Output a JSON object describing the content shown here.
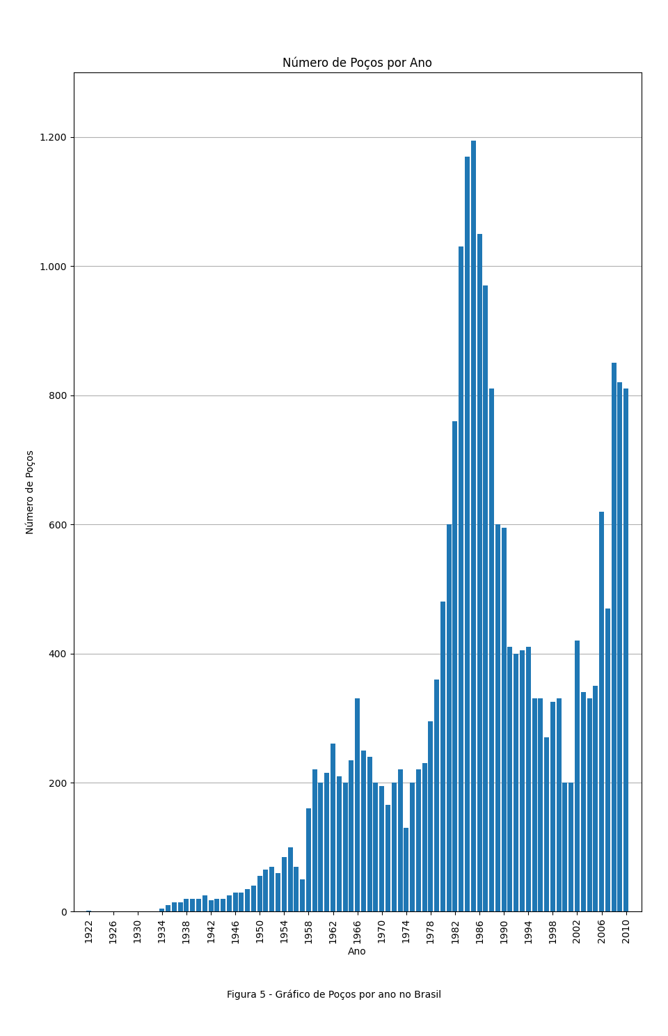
{
  "chart_data": {
    "type": "bar",
    "title": "Número de Poços por Ano",
    "x_label": "Ano",
    "y_label": "Número de Poços",
    "x": [
      1922,
      1923,
      1924,
      1925,
      1926,
      1927,
      1928,
      1929,
      1930,
      1931,
      1932,
      1933,
      1934,
      1935,
      1936,
      1937,
      1938,
      1939,
      1940,
      1941,
      1942,
      1943,
      1944,
      1945,
      1946,
      1947,
      1948,
      1949,
      1950,
      1951,
      1952,
      1953,
      1954,
      1955,
      1956,
      1957,
      1958,
      1959,
      1960,
      1961,
      1962,
      1963,
      1964,
      1965,
      1966,
      1967,
      1968,
      1969,
      1970,
      1971,
      1972,
      1973,
      1974,
      1975,
      1976,
      1977,
      1978,
      1979,
      1980,
      1981,
      1982,
      1983,
      1984,
      1985,
      1986,
      1987,
      1988,
      1989,
      1990,
      1991,
      1992,
      1993,
      1994,
      1995,
      1996,
      1997,
      1998,
      1999,
      2000,
      2001,
      2002,
      2003,
      2004,
      2005,
      2006,
      2007,
      2008,
      2009,
      2010
    ],
    "values": [
      2,
      0,
      0,
      0,
      0,
      0,
      0,
      0,
      0,
      0,
      0,
      0,
      5,
      10,
      15,
      15,
      20,
      20,
      20,
      25,
      18,
      20,
      20,
      25,
      30,
      30,
      35,
      40,
      55,
      65,
      70,
      60,
      85,
      100,
      70,
      50,
      160,
      220,
      200,
      215,
      260,
      210,
      200,
      235,
      330,
      250,
      240,
      200,
      195,
      165,
      200,
      220,
      130,
      200,
      220,
      230,
      295,
      360,
      480,
      600,
      760,
      1030,
      1170,
      1195,
      1050,
      970,
      810,
      600,
      595,
      410,
      400,
      405,
      410,
      330,
      330,
      270,
      325,
      330,
      200,
      200,
      420,
      340,
      330,
      350,
      620,
      470,
      850,
      820,
      810
    ],
    "xlim": [
      1919.5,
      2012.5
    ],
    "xticks": [
      1922,
      1926,
      1930,
      1934,
      1938,
      1942,
      1946,
      1950,
      1954,
      1958,
      1962,
      1966,
      1970,
      1974,
      1978,
      1982,
      1986,
      1990,
      1994,
      1998,
      2002,
      2006,
      2010
    ],
    "ylim": [
      0,
      1300
    ],
    "yticks": [
      0,
      200,
      400,
      600,
      800,
      {
        "value": 1000,
        "label": "1.000"
      },
      {
        "value": 1200,
        "label": "1.200"
      }
    ],
    "grid": true,
    "annotations": [
      "Figura 5 - Gráfico de Poços por ano no Brasil"
    ]
  }
}
